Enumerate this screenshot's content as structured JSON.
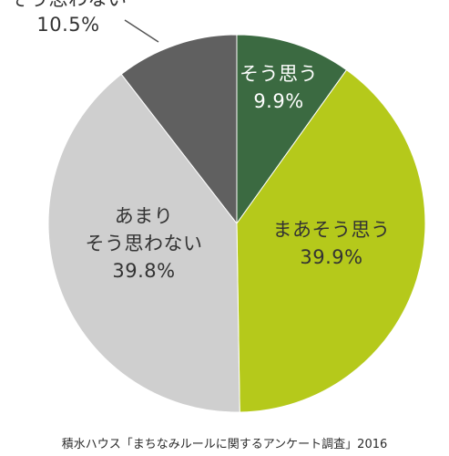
{
  "chart_data": {
    "type": "pie",
    "start": "top",
    "direction": "clockwise",
    "slices": [
      {
        "label": "そう思う",
        "value": 9.9,
        "value_text": "9.9%",
        "color": "#3b6a41",
        "label_lines": [
          "そう思う",
          "9.9%"
        ]
      },
      {
        "label": "まあそう思う",
        "value": 39.9,
        "value_text": "39.9%",
        "color": "#b5c91b",
        "label_lines": [
          "まあそう思う",
          "39.9%"
        ]
      },
      {
        "label": "あまりそう思わない",
        "value": 39.8,
        "value_text": "39.8%",
        "color": "#cfcfcf",
        "label_lines": [
          "あまり",
          "そう思わない",
          "39.8%"
        ]
      },
      {
        "label": "そう思わない",
        "value": 10.5,
        "value_text": "10.5%",
        "color": "#606060",
        "label_lines": [
          "そう思わない",
          "10.5%"
        ]
      }
    ],
    "source": "積水ハウス「まちなみルールに関するアンケート調査」2016"
  }
}
